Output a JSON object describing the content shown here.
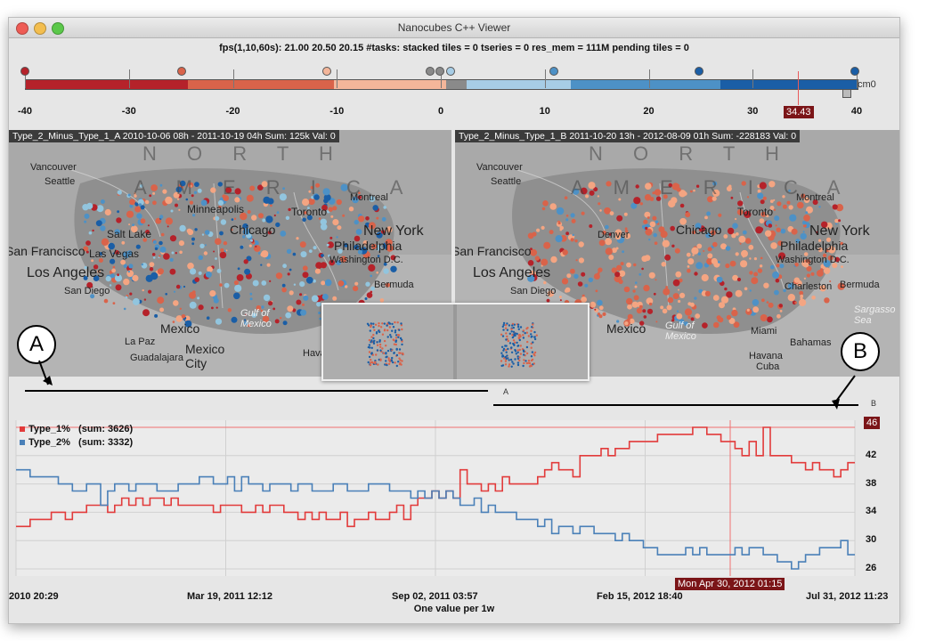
{
  "window": {
    "title": "Nanocubes C++ Viewer"
  },
  "status_line": "fps(1,10,60s): 21.00 20.50 20.15  #tasks:  stacked tiles = 0      tseries = 0      res_mem = 111M     pending tiles = 0",
  "colorbar": {
    "ticks": [
      "-40",
      "-30",
      "-20",
      "-10",
      "0",
      "10",
      "20",
      "30",
      "40"
    ],
    "label": "cm0",
    "cursor_value": "34.43",
    "segments": [
      {
        "color": "#b5222a",
        "frac": 0.195
      },
      {
        "color": "#d9634a",
        "frac": 0.175
      },
      {
        "color": "#f4b69a",
        "frac": 0.135
      },
      {
        "color": "#8a8a8a",
        "frac": 0.025
      },
      {
        "color": "#a7cde6",
        "frac": 0.125
      },
      {
        "color": "#4d91c6",
        "frac": 0.18
      },
      {
        "color": "#1a5ea6",
        "frac": 0.165
      }
    ]
  },
  "maps": [
    {
      "header": "Type_2_Minus_Type_1_A    2010-10-06 08h - 2011-10-19 04h  Sum: 125k  Val: 0",
      "labels": [
        "N O R T H",
        "A M E R I C A",
        "Vancouver",
        "Seattle",
        "Montreal",
        "Minneapolis",
        "Toronto",
        "Chicago",
        "New York",
        "Philadelphia",
        "Washington D.C.",
        "San Francisco",
        "Salt Lake",
        "Las Vegas",
        "Los Angeles",
        "San Diego",
        "Bermuda",
        "Gulf of Mexico",
        "Mexico",
        "La Paz",
        "Mexico City",
        "Guadalajara",
        "Havana"
      ]
    },
    {
      "header": "Type_2_Minus_Type_1_B    2011-10-20 13h - 2012-08-09 01h  Sum: -228183  Val: 0",
      "labels": [
        "N O R T H",
        "A M E R I C A",
        "Vancouver",
        "Seattle",
        "Montreal",
        "Toronto",
        "Chicago",
        "New York",
        "Philadelphia",
        "Washington D.C.",
        "San Francisco",
        "Denver",
        "Los Angeles",
        "San Diego",
        "Charleston",
        "Bermuda",
        "Sargasso Sea",
        "Mexico",
        "Gulf of Mexico",
        "Miami",
        "Bahamas",
        "Havana",
        "Cuba"
      ]
    }
  ],
  "annotations": {
    "a_bubble": "A",
    "b_bubble": "B",
    "a_small": "A",
    "b_small": "B"
  },
  "chart_data": {
    "type": "line",
    "xlabel": "One value per 1w",
    "x_ticks": [
      "2010 20:29",
      "Mar 19, 2011 12:12",
      "Sep 02, 2011 03:57",
      "Feb 15, 2012 18:40",
      "Jul 31, 2012 11:23"
    ],
    "y_ticks": [
      26,
      30,
      34,
      38,
      42,
      46
    ],
    "ylim": [
      25,
      47
    ],
    "cursor_x_label": "Mon Apr 30, 2012 01:15",
    "cursor_y_label": "46",
    "series": [
      {
        "name": "Type_1%",
        "sum_label": "(sum: 3626)",
        "color": "#e23b3b",
        "values": [
          32,
          32,
          33,
          33,
          33,
          34,
          34,
          33,
          34,
          34,
          35,
          35,
          35,
          34,
          35,
          36,
          35,
          36,
          35,
          36,
          36,
          35,
          36,
          35,
          35,
          35,
          35,
          35,
          34,
          35,
          35,
          35,
          34,
          34,
          35,
          34,
          35,
          35,
          34,
          34,
          33,
          34,
          33,
          34,
          33,
          33,
          34,
          32,
          33,
          33,
          34,
          33,
          33,
          34,
          35,
          33,
          35,
          36,
          36,
          37,
          36,
          37,
          36,
          40,
          38,
          38,
          37,
          38,
          37,
          39,
          38,
          38,
          38,
          38,
          39,
          40,
          41,
          40,
          40,
          39,
          42,
          42,
          42,
          43,
          42,
          43,
          43,
          44,
          44,
          44,
          44,
          45,
          45,
          45,
          45,
          45,
          46,
          46,
          45,
          45,
          44,
          44,
          43,
          42,
          44,
          42,
          46,
          42,
          42,
          42,
          41,
          41,
          40,
          41,
          40,
          40,
          39,
          40,
          41
        ]
      },
      {
        "name": "Type_2%",
        "sum_label": "(sum: 3332)",
        "color": "#4a80b8",
        "values": [
          40,
          40,
          39,
          39,
          39,
          39,
          38,
          38,
          37,
          37,
          38,
          38,
          35,
          37,
          38,
          38,
          37,
          38,
          38,
          38,
          37,
          37,
          37,
          38,
          38,
          38,
          39,
          39,
          38,
          38,
          39,
          37,
          39,
          38,
          38,
          37,
          38,
          38,
          38,
          37,
          38,
          38,
          37,
          37,
          37,
          38,
          38,
          37,
          37,
          37,
          38,
          38,
          38,
          37,
          37,
          37,
          36,
          37,
          36,
          37,
          36,
          37,
          36,
          35,
          35,
          36,
          34,
          35,
          34,
          34,
          34,
          33,
          33,
          33,
          32,
          33,
          31,
          32,
          32,
          31,
          32,
          32,
          31,
          31,
          31,
          30,
          31,
          30,
          30,
          29,
          29,
          28,
          28,
          28,
          28,
          29,
          28,
          29,
          28,
          28,
          28,
          28,
          29,
          28,
          29,
          29,
          28,
          28,
          27,
          27,
          26,
          27,
          28,
          28,
          29,
          29,
          29,
          30,
          28
        ]
      }
    ]
  }
}
